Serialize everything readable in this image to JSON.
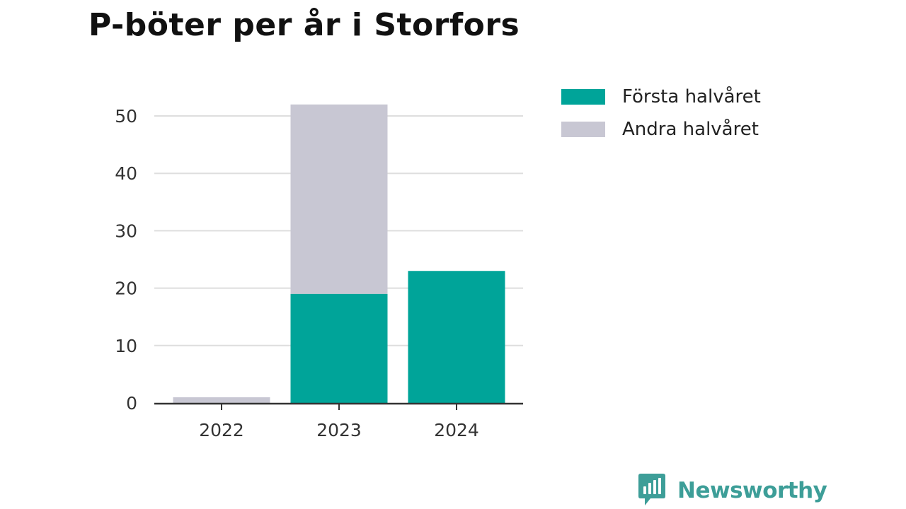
{
  "chart_data": {
    "type": "bar",
    "stacked": true,
    "title": "P-böter per år i Storfors",
    "xlabel": "",
    "ylabel": "",
    "categories": [
      "2022",
      "2023",
      "2024"
    ],
    "series": [
      {
        "name": "Första halvåret",
        "values": [
          0,
          19,
          23
        ],
        "color": "#00a499"
      },
      {
        "name": "Andra halvåret",
        "values": [
          1,
          33,
          0
        ],
        "color": "#c8c7d3"
      }
    ],
    "ylim": [
      0,
      50
    ],
    "yticks": [
      0,
      10,
      20,
      30,
      40,
      50
    ],
    "grid": true,
    "legend_position": "right"
  },
  "brand": {
    "name": "Newsworthy",
    "color": "#3d9e98",
    "icon": "bar-chart-speech-bubble-icon"
  }
}
